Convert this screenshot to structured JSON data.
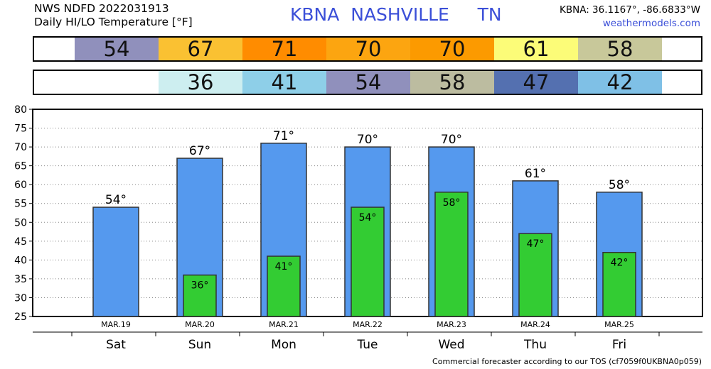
{
  "header": {
    "line1": "NWS NDFD 2022031913",
    "line2": "Daily HI/LO Temperature [°F]",
    "station": "KBNA  NASHVILLE     TN",
    "coords": "KBNA: 36.1167°, -86.6833°W",
    "website": "weathermodels.com"
  },
  "hi_strip": [
    {
      "value": "54",
      "color": "#9090bc"
    },
    {
      "value": "67",
      "color": "#fac132"
    },
    {
      "value": "71",
      "color": "#ff8c00"
    },
    {
      "value": "70",
      "color": "#fca510"
    },
    {
      "value": "70",
      "color": "#fc9a00"
    },
    {
      "value": "61",
      "color": "#fcfc78"
    },
    {
      "value": "58",
      "color": "#c8c89a"
    }
  ],
  "lo_strip": [
    {
      "value": "36",
      "color": "#cdeef0"
    },
    {
      "value": "41",
      "color": "#8ecfe8"
    },
    {
      "value": "54",
      "color": "#9090bc"
    },
    {
      "value": "58",
      "color": "#bcbca0"
    },
    {
      "value": "47",
      "color": "#5470b0"
    },
    {
      "value": "42",
      "color": "#7fc0e6"
    }
  ],
  "chart_data": {
    "type": "bar",
    "title": "Daily HI/LO Temperature [°F]",
    "days": [
      "Sat",
      "Sun",
      "Mon",
      "Tue",
      "Wed",
      "Thu",
      "Fri"
    ],
    "dates": [
      "MAR.19",
      "MAR.20",
      "MAR.21",
      "MAR.22",
      "MAR.23",
      "MAR.24",
      "MAR.25"
    ],
    "series": [
      {
        "name": "HI",
        "color": "#5599ee",
        "values": [
          54,
          67,
          71,
          70,
          70,
          61,
          58
        ],
        "labels": [
          "54°",
          "67°",
          "71°",
          "70°",
          "70°",
          "61°",
          "58°"
        ]
      },
      {
        "name": "LO",
        "color": "#33cc33",
        "values": [
          null,
          36,
          41,
          54,
          58,
          47,
          42
        ],
        "labels": [
          "",
          "36°",
          "41°",
          "54°",
          "58°",
          "47°",
          "42°"
        ]
      }
    ],
    "ylim": [
      25,
      80
    ],
    "yticks": [
      25,
      30,
      35,
      40,
      45,
      50,
      55,
      60,
      65,
      70,
      75,
      80
    ],
    "grid": true
  },
  "footer": "Commercial forecaster according to our TOS (cf7059f0UKBNA0p059)"
}
